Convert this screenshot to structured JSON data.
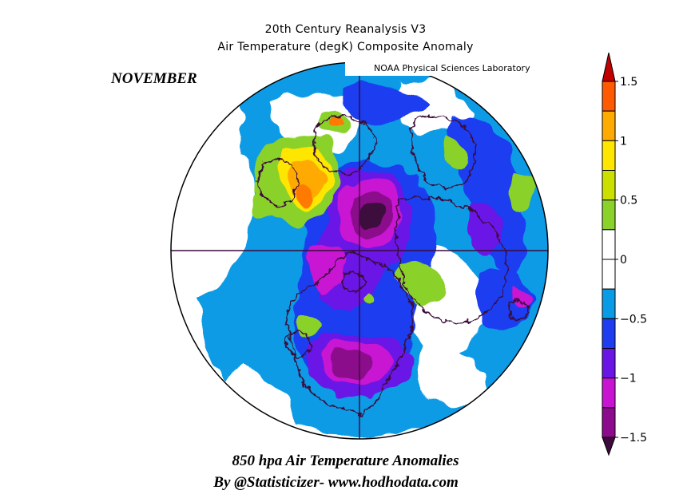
{
  "title": {
    "line1": "20th Century Reanalysis V3",
    "line2": "Air Temperature (degK) Composite Anomaly"
  },
  "month_label": "NOVEMBER",
  "lab_label": "NOAA Physical Sciences Laboratory",
  "caption": {
    "line1": "850 hpa Air Temperature Anomalies",
    "line2": "By @Statisticizer- www.hodhodata.com"
  },
  "colorbar": {
    "units": "degK",
    "ticks": [
      "1.5",
      "1",
      "0.5",
      "0",
      "−0.5",
      "−1",
      "−1.5"
    ],
    "levels": [
      {
        "range": "above 1.5",
        "color": "#c00000"
      },
      {
        "range": "1.25 to 1.5",
        "color": "#ff5a00"
      },
      {
        "range": "1 to 1.25",
        "color": "#ffaa00"
      },
      {
        "range": "0.75 to 1",
        "color": "#ffe600"
      },
      {
        "range": "0.5 to 0.75",
        "color": "#cce000"
      },
      {
        "range": "0.25 to 0.5",
        "color": "#8ad22a"
      },
      {
        "range": "0 to 0.25",
        "color": "#ffffff"
      },
      {
        "range": "-0.25 to 0",
        "color": "#ffffff"
      },
      {
        "range": "-0.5 to -0.25",
        "color": "#0a9be6"
      },
      {
        "range": "-0.75 to -0.5",
        "color": "#1e3cf0"
      },
      {
        "range": "-1 to -0.75",
        "color": "#6a14e6"
      },
      {
        "range": "-1.25 to -1",
        "color": "#c814d2"
      },
      {
        "range": "-1.5 to -1.25",
        "color": "#8c0a8c"
      },
      {
        "range": "below -1.5",
        "color": "#3c0a3c"
      }
    ]
  },
  "map": {
    "projection": "north polar stereographic",
    "variable": "850 hPa air temperature anomaly",
    "colors": {
      "coast": "#3a0a3a",
      "warm_max": "#ff6a00",
      "cold_max": "#3c0a3c"
    }
  }
}
